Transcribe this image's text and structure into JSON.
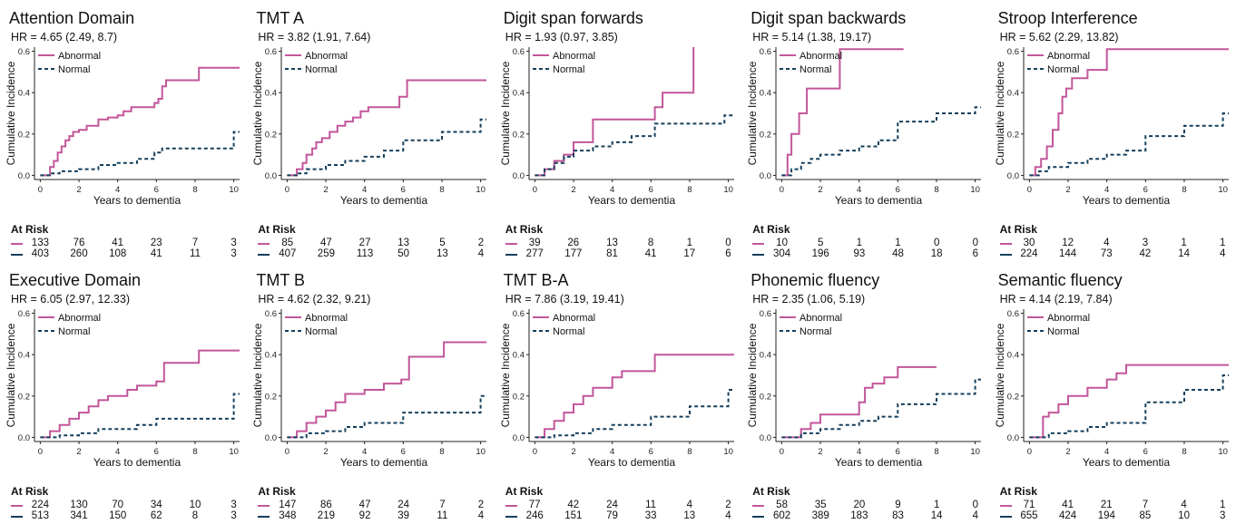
{
  "legend_labels": {
    "abnormal": "Abnormal",
    "normal": "Normal"
  },
  "y_axis_label": "Cumulative Incidence",
  "x_axis_label": "Years to dementia",
  "at_risk_label": "At Risk",
  "colors": {
    "abnormal": "#c2569a",
    "normal": "#153f5c"
  },
  "chart_data": [
    {
      "type": "line",
      "step": true,
      "title": "Attention Domain",
      "hr_text": "HR = 4.65 (2.49, 8.7)",
      "xlim": [
        -0.3,
        10.3
      ],
      "ylim": [
        -0.02,
        0.62
      ],
      "xticks": [
        0,
        2,
        4,
        6,
        8,
        10
      ],
      "yticks": [
        0.0,
        0.2,
        0.4,
        0.6
      ],
      "xlabel": "Years to dementia",
      "ylabel": "Cumulative Incidence",
      "series": [
        {
          "name": "Abnormal",
          "x": [
            0,
            0.5,
            0.7,
            0.9,
            1.1,
            1.3,
            1.5,
            1.7,
            2.0,
            2.4,
            3.0,
            3.5,
            4.0,
            4.3,
            4.7,
            5.9,
            6.1,
            6.3,
            6.5,
            8.2,
            10.3
          ],
          "y": [
            0,
            0.04,
            0.07,
            0.11,
            0.14,
            0.17,
            0.19,
            0.21,
            0.22,
            0.24,
            0.27,
            0.28,
            0.29,
            0.31,
            0.33,
            0.35,
            0.37,
            0.43,
            0.46,
            0.52,
            0.52
          ]
        },
        {
          "name": "Normal",
          "x": [
            0,
            0.5,
            1.0,
            2.0,
            3.0,
            4.0,
            5.0,
            5.9,
            6.3,
            10.0,
            10.3
          ],
          "y": [
            0,
            0.01,
            0.02,
            0.03,
            0.05,
            0.06,
            0.08,
            0.11,
            0.13,
            0.21,
            0.21
          ]
        }
      ],
      "at_risk": {
        "abnormal": [
          133,
          76,
          41,
          23,
          7,
          3
        ],
        "normal": [
          403,
          260,
          108,
          41,
          11,
          3
        ]
      }
    },
    {
      "type": "line",
      "step": true,
      "title": "TMT A",
      "hr_text": "HR = 3.82 (1.91, 7.64)",
      "xlim": [
        -0.3,
        10.3
      ],
      "ylim": [
        -0.02,
        0.62
      ],
      "xticks": [
        0,
        2,
        4,
        6,
        8,
        10
      ],
      "yticks": [
        0.0,
        0.2,
        0.4,
        0.6
      ],
      "xlabel": "Years to dementia",
      "ylabel": "Cumulative Incidence",
      "series": [
        {
          "name": "Abnormal",
          "x": [
            0,
            0.5,
            0.8,
            1.0,
            1.3,
            1.5,
            1.8,
            2.2,
            2.6,
            3.0,
            3.4,
            3.8,
            4.2,
            5.8,
            6.2,
            10.3
          ],
          "y": [
            0,
            0.03,
            0.06,
            0.1,
            0.13,
            0.16,
            0.18,
            0.21,
            0.24,
            0.26,
            0.28,
            0.31,
            0.33,
            0.38,
            0.46,
            0.46
          ]
        },
        {
          "name": "Normal",
          "x": [
            0,
            0.5,
            1.0,
            2.0,
            3.0,
            4.0,
            5.0,
            6.0,
            8.0,
            10.0,
            10.3
          ],
          "y": [
            0,
            0.01,
            0.03,
            0.05,
            0.07,
            0.09,
            0.12,
            0.17,
            0.21,
            0.27,
            0.27
          ]
        }
      ],
      "at_risk": {
        "abnormal": [
          85,
          47,
          27,
          13,
          5,
          2
        ],
        "normal": [
          407,
          259,
          113,
          50,
          13,
          4
        ]
      }
    },
    {
      "type": "line",
      "step": true,
      "title": "Digit span forwards",
      "hr_text": "HR = 1.93 (0.97, 3.85)",
      "xlim": [
        -0.3,
        10.3
      ],
      "ylim": [
        -0.02,
        0.62
      ],
      "xticks": [
        0,
        2,
        4,
        6,
        8,
        10
      ],
      "yticks": [
        0.0,
        0.2,
        0.4,
        0.6
      ],
      "xlabel": "Years to dementia",
      "ylabel": "Cumulative Incidence",
      "series": [
        {
          "name": "Abnormal",
          "x": [
            0,
            0.5,
            1.0,
            1.5,
            2.0,
            3.0,
            6.2,
            6.6,
            8.2,
            8.2
          ],
          "y": [
            0,
            0.03,
            0.07,
            0.1,
            0.16,
            0.27,
            0.33,
            0.4,
            0.62,
            0.62
          ]
        },
        {
          "name": "Normal",
          "x": [
            0,
            0.5,
            1.0,
            1.5,
            2.0,
            3.0,
            4.0,
            5.0,
            6.2,
            9.8,
            10.3
          ],
          "y": [
            0,
            0.03,
            0.06,
            0.09,
            0.12,
            0.14,
            0.16,
            0.19,
            0.25,
            0.29,
            0.29
          ]
        }
      ],
      "at_risk": {
        "abnormal": [
          39,
          26,
          13,
          8,
          1,
          0
        ],
        "normal": [
          277,
          177,
          81,
          41,
          17,
          6
        ]
      }
    },
    {
      "type": "line",
      "step": true,
      "title": "Digit span backwards",
      "hr_text": "HR = 5.14 (1.38, 19.17)",
      "xlim": [
        -0.3,
        10.3
      ],
      "ylim": [
        -0.02,
        0.62
      ],
      "xticks": [
        0,
        2,
        4,
        6,
        8,
        10
      ],
      "yticks": [
        0.0,
        0.2,
        0.4,
        0.6
      ],
      "xlabel": "Years to dementia",
      "ylabel": "Cumulative Incidence",
      "series": [
        {
          "name": "Abnormal",
          "x": [
            0,
            0.3,
            0.5,
            0.9,
            1.3,
            3.0,
            6.3
          ],
          "y": [
            0,
            0.1,
            0.2,
            0.3,
            0.42,
            0.61,
            0.61
          ]
        },
        {
          "name": "Normal",
          "x": [
            0,
            0.5,
            1.0,
            1.5,
            2.0,
            3.0,
            4.0,
            5.0,
            6.0,
            8.0,
            10.0,
            10.3
          ],
          "y": [
            0,
            0.03,
            0.06,
            0.08,
            0.1,
            0.12,
            0.14,
            0.17,
            0.26,
            0.3,
            0.33,
            0.33
          ]
        }
      ],
      "at_risk": {
        "abnormal": [
          10,
          5,
          1,
          1,
          0,
          0
        ],
        "normal": [
          304,
          196,
          93,
          48,
          18,
          6
        ]
      }
    },
    {
      "type": "line",
      "step": true,
      "title": "Stroop Interference",
      "hr_text": "HR = 5.62 (2.29, 13.82)",
      "xlim": [
        -0.3,
        10.3
      ],
      "ylim": [
        -0.02,
        0.62
      ],
      "xticks": [
        0,
        2,
        4,
        6,
        8,
        10
      ],
      "yticks": [
        0.0,
        0.2,
        0.4,
        0.6
      ],
      "xlabel": "Years to dementia",
      "ylabel": "Cumulative Incidence",
      "series": [
        {
          "name": "Abnormal",
          "x": [
            0,
            0.3,
            0.6,
            0.9,
            1.2,
            1.5,
            1.7,
            1.9,
            2.2,
            3.0,
            4.0,
            10.3
          ],
          "y": [
            0,
            0.04,
            0.08,
            0.14,
            0.22,
            0.3,
            0.38,
            0.42,
            0.47,
            0.51,
            0.61,
            0.61
          ]
        },
        {
          "name": "Normal",
          "x": [
            0,
            0.5,
            1.0,
            2.0,
            3.0,
            4.0,
            5.0,
            6.0,
            8.0,
            10.0,
            10.3
          ],
          "y": [
            0,
            0.02,
            0.04,
            0.06,
            0.08,
            0.1,
            0.12,
            0.19,
            0.24,
            0.3,
            0.3
          ]
        }
      ],
      "at_risk": {
        "abnormal": [
          30,
          12,
          4,
          3,
          1,
          1
        ],
        "normal": [
          224,
          144,
          73,
          42,
          14,
          4
        ]
      }
    },
    {
      "type": "line",
      "step": true,
      "title": "Executive Domain",
      "hr_text": "HR = 6.05 (2.97, 12.33)",
      "xlim": [
        -0.3,
        10.3
      ],
      "ylim": [
        -0.02,
        0.62
      ],
      "xticks": [
        0,
        2,
        4,
        6,
        8,
        10
      ],
      "yticks": [
        0.0,
        0.2,
        0.4,
        0.6
      ],
      "xlabel": "Years to dementia",
      "ylabel": "Cumulative Incidence",
      "series": [
        {
          "name": "Abnormal",
          "x": [
            0,
            0.5,
            1.0,
            1.5,
            2.0,
            2.5,
            3.0,
            3.5,
            4.5,
            5.0,
            6.0,
            6.4,
            8.2,
            10.3
          ],
          "y": [
            0,
            0.03,
            0.06,
            0.09,
            0.12,
            0.15,
            0.18,
            0.2,
            0.23,
            0.25,
            0.27,
            0.36,
            0.42,
            0.42
          ]
        },
        {
          "name": "Normal",
          "x": [
            0,
            1.0,
            2.0,
            3.0,
            5.0,
            6.0,
            10.0,
            10.3
          ],
          "y": [
            0,
            0.01,
            0.02,
            0.04,
            0.06,
            0.09,
            0.21,
            0.21
          ]
        }
      ],
      "at_risk": {
        "abnormal": [
          224,
          130,
          70,
          34,
          10,
          3
        ],
        "normal": [
          513,
          341,
          150,
          62,
          8,
          3
        ]
      }
    },
    {
      "type": "line",
      "step": true,
      "title": "TMT B",
      "hr_text": "HR = 4.62 (2.32, 9.21)",
      "xlim": [
        -0.3,
        10.3
      ],
      "ylim": [
        -0.02,
        0.62
      ],
      "xticks": [
        0,
        2,
        4,
        6,
        8,
        10
      ],
      "yticks": [
        0.0,
        0.2,
        0.4,
        0.6
      ],
      "xlabel": "Years to dementia",
      "ylabel": "Cumulative Incidence",
      "series": [
        {
          "name": "Abnormal",
          "x": [
            0,
            0.5,
            1.0,
            1.5,
            2.0,
            2.5,
            3.0,
            4.0,
            5.0,
            5.9,
            6.3,
            8.1,
            10.3
          ],
          "y": [
            0,
            0.03,
            0.07,
            0.1,
            0.13,
            0.17,
            0.21,
            0.23,
            0.26,
            0.28,
            0.39,
            0.46,
            0.46
          ]
        },
        {
          "name": "Normal",
          "x": [
            0,
            1.0,
            2.0,
            3.0,
            4.0,
            6.0,
            10.0,
            10.3
          ],
          "y": [
            0,
            0.02,
            0.03,
            0.05,
            0.07,
            0.12,
            0.2,
            0.2
          ]
        }
      ],
      "at_risk": {
        "abnormal": [
          147,
          86,
          47,
          24,
          7,
          2
        ],
        "normal": [
          348,
          219,
          92,
          39,
          11,
          4
        ]
      }
    },
    {
      "type": "line",
      "step": true,
      "title": "TMT B-A",
      "hr_text": "HR = 7.86 (3.19, 19.41)",
      "xlim": [
        -0.3,
        10.3
      ],
      "ylim": [
        -0.02,
        0.62
      ],
      "xticks": [
        0,
        2,
        4,
        6,
        8,
        10
      ],
      "yticks": [
        0.0,
        0.2,
        0.4,
        0.6
      ],
      "xlabel": "Years to dementia",
      "ylabel": "Cumulative Incidence",
      "series": [
        {
          "name": "Abnormal",
          "x": [
            0,
            0.5,
            1.0,
            1.5,
            2.0,
            2.5,
            3.0,
            4.0,
            4.5,
            6.2,
            10.3
          ],
          "y": [
            0,
            0.04,
            0.08,
            0.12,
            0.16,
            0.2,
            0.24,
            0.29,
            0.32,
            0.4,
            0.4
          ]
        },
        {
          "name": "Normal",
          "x": [
            0,
            1.0,
            2.0,
            3.0,
            4.0,
            6.0,
            8.0,
            10.0,
            10.3
          ],
          "y": [
            0,
            0.01,
            0.02,
            0.04,
            0.06,
            0.1,
            0.15,
            0.23,
            0.23
          ]
        }
      ],
      "at_risk": {
        "abnormal": [
          77,
          42,
          24,
          11,
          4,
          2
        ],
        "normal": [
          246,
          151,
          79,
          33,
          13,
          4
        ]
      }
    },
    {
      "type": "line",
      "step": true,
      "title": "Phonemic fluency",
      "hr_text": "HR = 2.35 (1.06, 5.19)",
      "xlim": [
        -0.3,
        10.3
      ],
      "ylim": [
        -0.02,
        0.62
      ],
      "xticks": [
        0,
        2,
        4,
        6,
        8,
        10
      ],
      "yticks": [
        0.0,
        0.2,
        0.4,
        0.6
      ],
      "xlabel": "Years to dementia",
      "ylabel": "Cumulative Incidence",
      "series": [
        {
          "name": "Abnormal",
          "x": [
            0,
            1.0,
            1.5,
            2.0,
            4.0,
            4.3,
            4.7,
            5.3,
            6.0,
            8.0
          ],
          "y": [
            0,
            0.04,
            0.07,
            0.11,
            0.17,
            0.24,
            0.26,
            0.29,
            0.34,
            0.34
          ]
        },
        {
          "name": "Normal",
          "x": [
            0,
            1.0,
            2.0,
            3.0,
            4.0,
            5.0,
            6.0,
            8.0,
            10.0,
            10.3
          ],
          "y": [
            0,
            0.02,
            0.04,
            0.06,
            0.08,
            0.1,
            0.16,
            0.21,
            0.28,
            0.28
          ]
        }
      ],
      "at_risk": {
        "abnormal": [
          58,
          35,
          20,
          9,
          1,
          0
        ],
        "normal": [
          602,
          389,
          183,
          83,
          14,
          4
        ]
      }
    },
    {
      "type": "line",
      "step": true,
      "title": "Semantic fluency",
      "hr_text": "HR = 4.14 (2.19, 7.84)",
      "xlim": [
        -0.3,
        10.3
      ],
      "ylim": [
        -0.02,
        0.62
      ],
      "xticks": [
        0,
        2,
        4,
        6,
        8,
        10
      ],
      "yticks": [
        0.0,
        0.2,
        0.4,
        0.6
      ],
      "xlabel": "Years to dementia",
      "ylabel": "Cumulative Incidence",
      "series": [
        {
          "name": "Abnormal",
          "x": [
            0,
            0.7,
            1.0,
            1.5,
            2.0,
            3.0,
            4.0,
            4.5,
            5.0,
            10.3
          ],
          "y": [
            0,
            0.1,
            0.12,
            0.16,
            0.2,
            0.24,
            0.28,
            0.31,
            0.35,
            0.35
          ]
        },
        {
          "name": "Normal",
          "x": [
            0,
            1.0,
            2.0,
            3.0,
            4.0,
            6.0,
            8.0,
            10.0,
            10.3
          ],
          "y": [
            0,
            0.02,
            0.03,
            0.05,
            0.07,
            0.17,
            0.23,
            0.3,
            0.3
          ]
        }
      ],
      "at_risk": {
        "abnormal": [
          71,
          41,
          21,
          7,
          4,
          1
        ],
        "normal": [
          655,
          424,
          194,
          85,
          10,
          3
        ]
      }
    }
  ]
}
